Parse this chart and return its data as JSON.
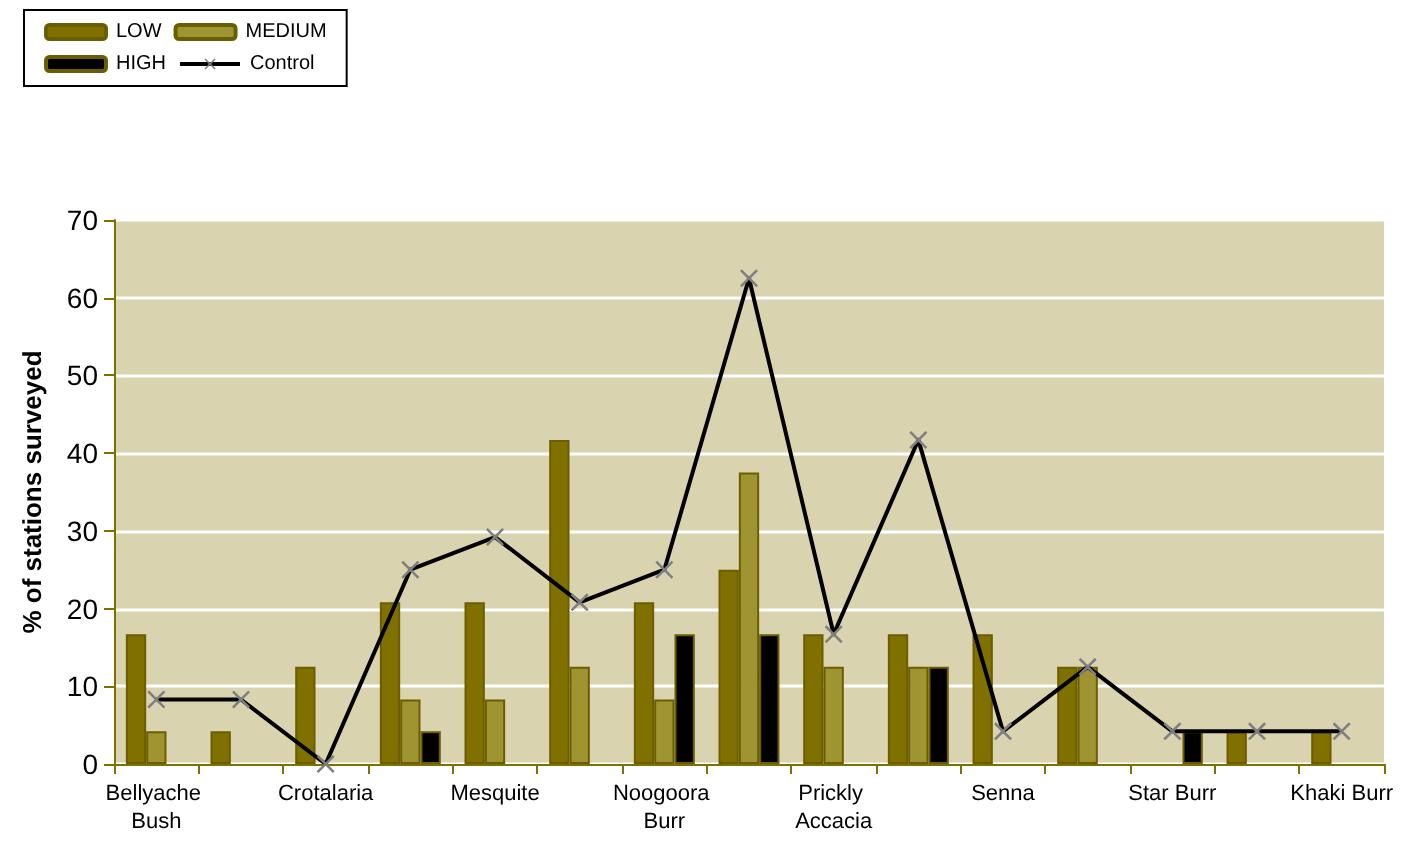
{
  "chart_data": {
    "type": "bar",
    "ylabel": "% of stations surveyed",
    "categories": [
      "Bellyache Bush",
      null,
      "Crotalaria",
      null,
      "Mesquite",
      null,
      "Noogoora Burr",
      null,
      "Prickly Accacia",
      null,
      "Senna",
      null,
      "Star Burr",
      null,
      "Khaki Burr"
    ],
    "series": [
      {
        "name": "LOW",
        "color": "#807000",
        "values": [
          16.7,
          4.2,
          12.5,
          20.8,
          20.8,
          41.7,
          20.8,
          25,
          16.7,
          16.7,
          16.7,
          12.5,
          null,
          4.2,
          4.2
        ]
      },
      {
        "name": "MEDIUM",
        "color": "#9f9432",
        "values": [
          4.2,
          null,
          null,
          8.3,
          8.3,
          12.5,
          8.3,
          37.5,
          12.5,
          12.5,
          null,
          12.5,
          null,
          null,
          null
        ]
      },
      {
        "name": "HIGH",
        "color": "#000000",
        "values": [
          null,
          null,
          null,
          4.2,
          null,
          null,
          16.7,
          16.7,
          null,
          12.5,
          null,
          null,
          4.2,
          null,
          null
        ]
      },
      {
        "name": "Control",
        "type": "line",
        "color": "#000000",
        "marker": "cross",
        "values": [
          8.3,
          8.3,
          0,
          25,
          29.2,
          20.8,
          25,
          62.5,
          16.7,
          41.7,
          4.2,
          12.5,
          4.2,
          4.2,
          4.2
        ]
      }
    ],
    "ylim": [
      0,
      70
    ],
    "yticks": [
      0,
      10,
      20,
      30,
      40,
      50,
      60,
      70
    ],
    "grid": "y",
    "legend": "top left"
  }
}
